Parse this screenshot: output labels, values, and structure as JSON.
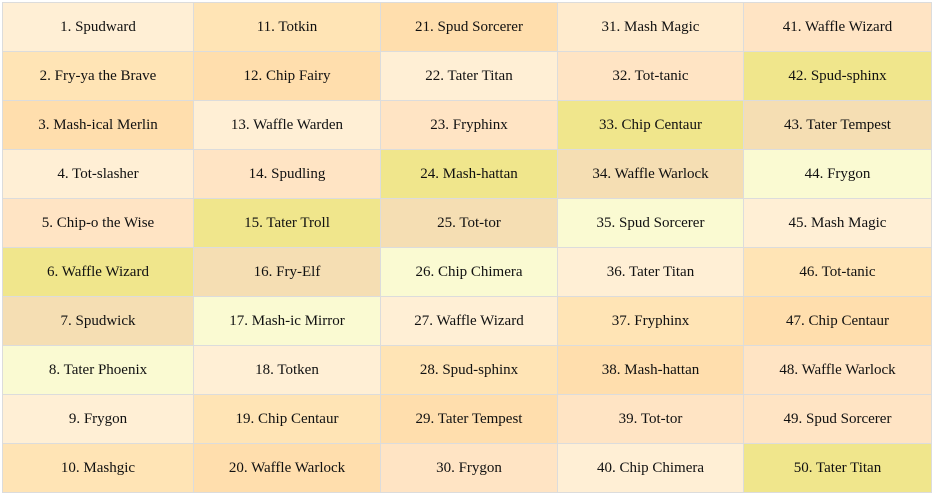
{
  "grid": {
    "columns": 5,
    "cells": [
      {
        "label": "1. Spudward",
        "color": "#FFEFD5"
      },
      {
        "label": "2. Fry-ya the Brave",
        "color": "#FFE4B5"
      },
      {
        "label": "3. Mash-ical Merlin",
        "color": "#FFDEAD"
      },
      {
        "label": "4. Tot-slasher",
        "color": "#FFEFD5"
      },
      {
        "label": "5. Chip-o the Wise",
        "color": "#FFE4C4"
      },
      {
        "label": "6. Waffle Wizard",
        "color": "#F0E68C"
      },
      {
        "label": "7. Spudwick",
        "color": "#F5DEB3"
      },
      {
        "label": "8. Tater Phoenix",
        "color": "#FAFAD2"
      },
      {
        "label": "9. Frygon",
        "color": "#FFEFD5"
      },
      {
        "label": "10. Mashgic",
        "color": "#FFE4B5"
      },
      {
        "label": "11. Totkin",
        "color": "#FFE4B5"
      },
      {
        "label": "12. Chip Fairy",
        "color": "#FFDEAD"
      },
      {
        "label": "13. Waffle Warden",
        "color": "#FFEFD5"
      },
      {
        "label": "14. Spudling",
        "color": "#FFE4C4"
      },
      {
        "label": "15. Tater Troll",
        "color": "#F0E68C"
      },
      {
        "label": "16. Fry-Elf",
        "color": "#F5DEB3"
      },
      {
        "label": "17. Mash-ic Mirror",
        "color": "#FAFAD2"
      },
      {
        "label": "18. Totken",
        "color": "#FFEFD5"
      },
      {
        "label": "19. Chip Centaur",
        "color": "#FFE4B5"
      },
      {
        "label": "20. Waffle Warlock",
        "color": "#FFDEAD"
      },
      {
        "label": "21. Spud Sorcerer",
        "color": "#FFDEAD"
      },
      {
        "label": "22. Tater Titan",
        "color": "#FFEFD5"
      },
      {
        "label": "23. Fryphinx",
        "color": "#FFE4C4"
      },
      {
        "label": "24. Mash-hattan",
        "color": "#F0E68C"
      },
      {
        "label": "25. Tot-tor",
        "color": "#F5DEB3"
      },
      {
        "label": "26. Chip Chimera",
        "color": "#FAFAD2"
      },
      {
        "label": "27. Waffle Wizard",
        "color": "#FFEFD5"
      },
      {
        "label": "28. Spud-sphinx",
        "color": "#FFE4B5"
      },
      {
        "label": "29. Tater Tempest",
        "color": "#FFDEAD"
      },
      {
        "label": "30. Frygon",
        "color": "#FFE4C4"
      },
      {
        "label": "31. Mash Magic",
        "color": "#FFEBCD"
      },
      {
        "label": "32. Tot-tanic",
        "color": "#FFE4C4"
      },
      {
        "label": "33. Chip Centaur",
        "color": "#F0E68C"
      },
      {
        "label": "34. Waffle Warlock",
        "color": "#F5DEB3"
      },
      {
        "label": "35. Spud Sorcerer",
        "color": "#FAFAD2"
      },
      {
        "label": "36. Tater Titan",
        "color": "#FFEFD5"
      },
      {
        "label": "37. Fryphinx",
        "color": "#FFE4B5"
      },
      {
        "label": "38. Mash-hattan",
        "color": "#FFDEAD"
      },
      {
        "label": "39. Tot-tor",
        "color": "#FFE4C4"
      },
      {
        "label": "40. Chip Chimera",
        "color": "#FFEFD5"
      },
      {
        "label": "41. Waffle Wizard",
        "color": "#FFE4C4"
      },
      {
        "label": "42. Spud-sphinx",
        "color": "#F0E68C"
      },
      {
        "label": "43. Tater Tempest",
        "color": "#F5DEB3"
      },
      {
        "label": "44. Frygon",
        "color": "#FAFAD2"
      },
      {
        "label": "45. Mash Magic",
        "color": "#FFEFD5"
      },
      {
        "label": "46. Tot-tanic",
        "color": "#FFE4B5"
      },
      {
        "label": "47. Chip Centaur",
        "color": "#FFDEAD"
      },
      {
        "label": "48. Waffle Warlock",
        "color": "#FFE4C4"
      },
      {
        "label": "49. Spud Sorcerer",
        "color": "#FFE4C4"
      },
      {
        "label": "50. Tater Titan",
        "color": "#F0E68C"
      }
    ]
  }
}
